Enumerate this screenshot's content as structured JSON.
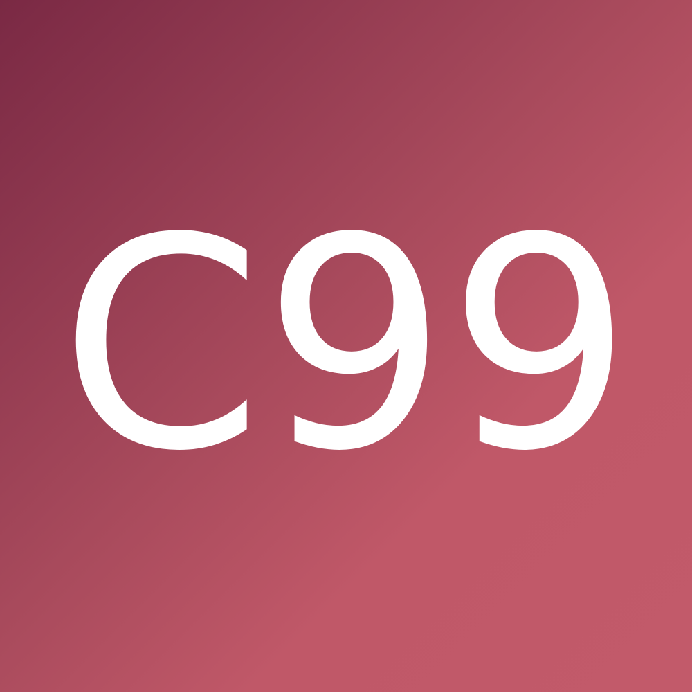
{
  "tile": {
    "text": "C99",
    "text_color": "#ffffff",
    "gradient_start_color": "#7a2944",
    "gradient_end_color": "#c25a6a"
  }
}
